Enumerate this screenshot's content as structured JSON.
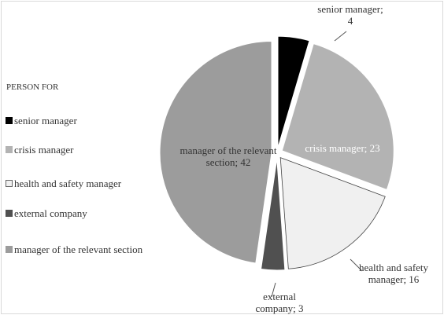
{
  "chart_data": {
    "type": "pie",
    "legend_title": "PERSON FOR",
    "categories": [
      "senior manager",
      "crisis manager",
      "health and safety manager",
      "external company",
      "manager of the relevant section"
    ],
    "values": [
      4,
      23,
      16,
      3,
      42
    ],
    "value_labels": [
      "senior manager; 4",
      "crisis manager; 23",
      "health and safety manager; 16",
      "external company; 3",
      "manager of the relevant section; 42"
    ],
    "colors": [
      "#000000",
      "#b3b3b3",
      "#f0f0f0",
      "#505050",
      "#9c9c9c"
    ],
    "legend": "left"
  }
}
